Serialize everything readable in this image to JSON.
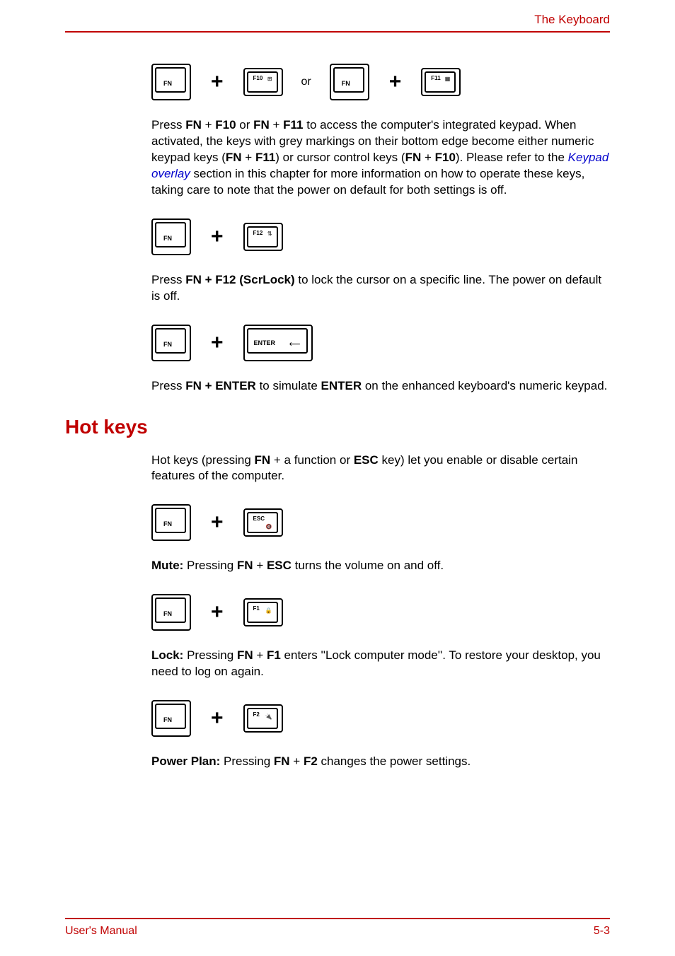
{
  "header": {
    "chapter": "The Keyboard"
  },
  "footer": {
    "left": "User's Manual",
    "right": "5-3"
  },
  "keys": {
    "fn": "FN",
    "f10": "F10",
    "f11": "F11",
    "f12": "F12",
    "f1": "F1",
    "f2": "F2",
    "esc": "ESC",
    "enter": "ENTER",
    "or": "or",
    "plus": "+",
    "sym_keypad": "⊞",
    "sym_cursor": "▦",
    "sym_scroll": "⇅",
    "sym_mute": "🔇",
    "sym_lock": "🔒",
    "sym_power": "🔌",
    "sym_arrow": "⟵"
  },
  "para1": {
    "t1": "Press ",
    "b1": "FN",
    "t2": " + ",
    "b2": "F10",
    "t3": " or ",
    "b3": "FN",
    "t4": " + ",
    "b4": "F11",
    "t5": " to access the computer's integrated keypad. When activated, the keys with grey markings on their bottom edge become either numeric keypad keys (",
    "b5": "FN",
    "t6": " + ",
    "b6": "F11",
    "t7": ") or cursor control keys (",
    "b7": "FN",
    "t8": " + ",
    "b8": "F10",
    "t9": "). Please refer to the ",
    "link": "Keypad overlay",
    "t10": " section in this chapter for more information on how to operate these keys, taking care to note that the power on default for both settings is off."
  },
  "para2": {
    "t1": "Press ",
    "b1": "FN + F12 (ScrLock)",
    "t2": " to lock the cursor on a specific line. The power on default is off."
  },
  "para3": {
    "t1": "Press ",
    "b1": "FN + ENTER",
    "t2": " to simulate ",
    "b2": "ENTER",
    "t3": " on the enhanced keyboard's numeric keypad."
  },
  "section": {
    "title": "Hot keys"
  },
  "para4": {
    "t1": "Hot keys (pressing ",
    "b1": "FN",
    "t2": " + a function or ",
    "b2": "ESC",
    "t3": " key) let you enable or disable certain features of the computer."
  },
  "para5": {
    "b1": "Mute:",
    "t1": " Pressing ",
    "b2": "FN",
    "t2": " + ",
    "b3": "ESC",
    "t3": " turns the volume on and off."
  },
  "para6": {
    "b1": "Lock:",
    "t1": " Pressing ",
    "b2": "FN",
    "t2": " + ",
    "b3": "F1",
    "t3": " enters ''Lock computer mode''. To restore your desktop, you need to log on again."
  },
  "para7": {
    "b1": "Power Plan:",
    "t1": " Pressing ",
    "b2": "FN",
    "t2": " + ",
    "b3": "F2",
    "t3": " changes the power settings."
  }
}
